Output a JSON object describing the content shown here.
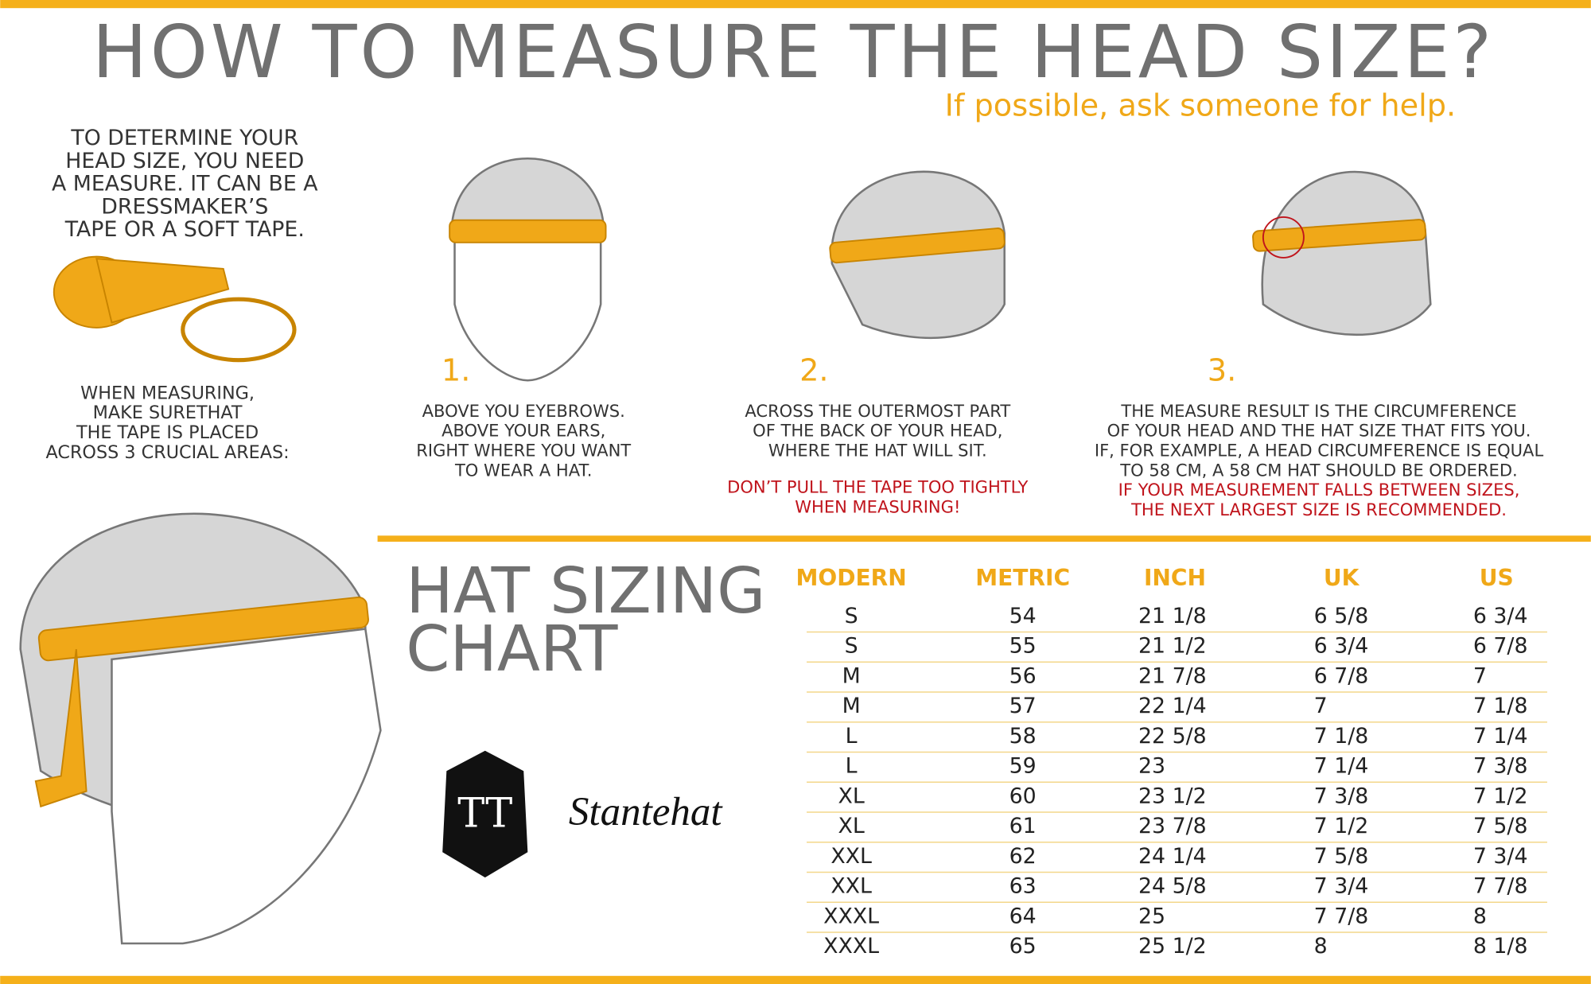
{
  "header": {
    "title": "HOW TO MEASURE THE HEAD SIZE?",
    "subtitle": "If possible, ask someone for help."
  },
  "intro": {
    "lines": [
      "TO DETERMINE YOUR",
      "HEAD SIZE, YOU NEED",
      "A MEASURE. IT CAN BE A",
      "DRESSMAKER’S",
      "TAPE OR A SOFT TAPE."
    ]
  },
  "note": {
    "lines": [
      "WHEN MEASURING,",
      "MAKE SURETHAT",
      "THE TAPE IS PLACED",
      "ACROSS 3 CRUCIAL AREAS:"
    ]
  },
  "steps": [
    {
      "number": "1.",
      "lines": [
        "ABOVE YOU EYEBROWS.",
        "ABOVE YOUR EARS,",
        "RIGHT WHERE YOU WANT",
        "TO WEAR A HAT."
      ],
      "warning": []
    },
    {
      "number": "2.",
      "lines": [
        "ACROSS THE OUTERMOST PART",
        "OF THE BACK OF YOUR HEAD,",
        "WHERE THE HAT WILL SIT."
      ],
      "warning": [
        "DON’T PULL THE TAPE TOO TIGHTLY",
        "WHEN MEASURING!"
      ]
    },
    {
      "number": "3.",
      "lines": [
        "THE MEASURE RESULT IS THE CIRCUMFERENCE",
        "OF YOUR HEAD AND THE  HAT SIZE THAT FITS YOU.",
        "IF, FOR EXAMPLE, A HEAD CIRCUMFERENCE IS EQUAL",
        "TO 58 CM, A 58 CM HAT SHOULD BE ORDERED."
      ],
      "warning": [
        "IF YOUR MEASUREMENT FALLS BETWEEN SIZES,",
        "THE NEXT LARGEST SIZE IS RECOMMENDED."
      ]
    }
  ],
  "table": {
    "title": [
      "HAT SIZING",
      "CHART"
    ],
    "headers": [
      "MODERN",
      "METRIC",
      "INCH",
      "UK",
      "US"
    ],
    "rows": [
      [
        "S",
        "54",
        "21 1/8",
        "6 5/8",
        "6 3/4"
      ],
      [
        "S",
        "55",
        "21 1/2",
        "6 3/4",
        "6 7/8"
      ],
      [
        "M",
        "56",
        "21 7/8",
        "6 7/8",
        "7"
      ],
      [
        "M",
        "57",
        "22 1/4",
        "7",
        "7 1/8"
      ],
      [
        "L",
        "58",
        "22 5/8",
        "7 1/8",
        "7 1/4"
      ],
      [
        "L",
        "59",
        "23",
        "7 1/4",
        "7 3/8"
      ],
      [
        "XL",
        "60",
        "23 1/2",
        "7 3/8",
        "7 1/2"
      ],
      [
        "XL",
        "61",
        "23 7/8",
        "7 1/2",
        "7 5/8"
      ],
      [
        "XXL",
        "62",
        "24 1/4",
        "7 5/8",
        "7 3/4"
      ],
      [
        "XXL",
        "63",
        "24 5/8",
        "7 3/4",
        "7 7/8"
      ],
      [
        "XXXL",
        "64",
        "25",
        "7 7/8",
        "8"
      ],
      [
        "XXXL",
        "65",
        "25 1/2",
        "8",
        "8 1/8"
      ]
    ]
  },
  "logo": {
    "text": "Stantehat"
  }
}
